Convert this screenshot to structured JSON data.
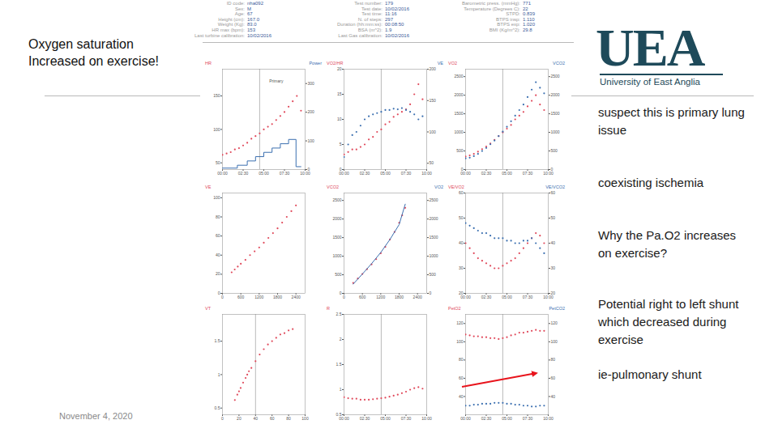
{
  "slide": {
    "left_title": [
      "Oxygen saturation",
      "Increased on exercise!"
    ],
    "notes": [
      "suspect this is primary lung issue",
      "coexisting ischemia",
      "Why the Pa.O2 increases on exercise?",
      "Potential right to left shunt which decreased during exercise",
      "ie-pulmonary shunt"
    ],
    "date": "November 4, 2020",
    "logo": {
      "letters": "UEA",
      "name": "University of East Anglia"
    },
    "header": [
      [
        [
          "ID code:",
          "nha092"
        ],
        [
          "Sex:",
          "M"
        ],
        [
          "Age:",
          "67"
        ],
        [
          "Height (cm):",
          "167.0"
        ],
        [
          "Weight (Kg):",
          "83.0"
        ],
        [
          "HR max (bpm):",
          "153"
        ],
        [
          "Last turbine calibration:",
          "10/02/2016"
        ]
      ],
      [
        [
          "Test number:",
          "179"
        ],
        [
          "Test date:",
          "10/02/2016"
        ],
        [
          "Test time:",
          "11:16"
        ],
        [
          "N. of steps:",
          "297"
        ],
        [
          "Duration (hh:mm:ss):",
          "00:08:50"
        ],
        [
          "BSA (m^2):",
          "1.9"
        ],
        [
          "Last Gas calibration:",
          "10/02/2016"
        ]
      ],
      [
        [
          "Barometric press. (mmHg):",
          "771"
        ],
        [
          "Temperature (Degrees C):",
          "22"
        ],
        [
          "STPD:",
          "0.839"
        ],
        [
          "BTPS insp:",
          "1.110"
        ],
        [
          "BTPS exp:",
          "1.020"
        ],
        [
          "BMI (Kg/m^2):",
          "29.8"
        ]
      ]
    ]
  },
  "chart_data": [
    {
      "type": "scatter",
      "xlim": [
        0,
        10
      ],
      "xticks": [
        {
          "value": 0,
          "label": "00:00"
        },
        {
          "value": 2.5,
          "label": "02:30"
        },
        {
          "value": 5,
          "label": "05:00"
        },
        {
          "value": 7.5,
          "label": "07:30"
        },
        {
          "value": 10,
          "label": "10:00"
        }
      ],
      "ylim": [
        40,
        190
      ],
      "yticks": [
        50,
        100,
        150
      ],
      "y2lim": [
        0,
        350
      ],
      "y2ticks": [
        0,
        100,
        200,
        300
      ],
      "vline": 4.5,
      "annotations": [
        {
          "text": "Primary",
          "x": 6.5,
          "y": 172
        }
      ],
      "series": [
        {
          "name": "HR",
          "color": "#e0485a",
          "x": [
            0,
            0.5,
            1,
            1.5,
            2,
            2.5,
            3,
            3.5,
            4,
            4.5,
            5,
            5.5,
            6,
            6.5,
            7,
            7.5,
            8,
            8.5,
            9,
            9.5
          ],
          "values": [
            62,
            64,
            66,
            70,
            72,
            76,
            80,
            86,
            90,
            94,
            100,
            104,
            108,
            114,
            120,
            126,
            134,
            142,
            150,
            128
          ]
        },
        {
          "name": "Power",
          "color": "#3b6fb0",
          "type": "line",
          "line_style": "step",
          "axis": "y2",
          "x": [
            0,
            1.8,
            3,
            4,
            5,
            6,
            7,
            8,
            8.9,
            9.5
          ],
          "values": [
            5,
            15,
            30,
            45,
            60,
            75,
            90,
            105,
            10,
            10
          ]
        }
      ]
    },
    {
      "type": "scatter",
      "xlim": [
        0,
        10
      ],
      "xticks": [
        {
          "value": 0,
          "label": "00:00"
        },
        {
          "value": 2.5,
          "label": "02:30"
        },
        {
          "value": 5,
          "label": "05:00"
        },
        {
          "value": 7.5,
          "label": "07:30"
        },
        {
          "value": 10,
          "label": "10:00"
        }
      ],
      "ylim": [
        0,
        20
      ],
      "yticks": [
        0,
        5,
        10,
        15,
        20
      ],
      "y2lim": [
        40,
        200
      ],
      "y2ticks": [
        50,
        100,
        150,
        200
      ],
      "vline": 4.5,
      "series": [
        {
          "name": "VO2/HR",
          "color": "#e0485a",
          "x": [
            0,
            0.5,
            1,
            1.5,
            2,
            2.5,
            3,
            3.5,
            4,
            4.5,
            5,
            5.5,
            6,
            6.5,
            7,
            7.5,
            8,
            8.5,
            9,
            9.5
          ],
          "values": [
            3,
            3.5,
            4,
            4,
            4.5,
            5,
            6,
            6.5,
            7.5,
            8,
            9,
            9.5,
            10.5,
            11,
            11.5,
            12,
            13,
            15,
            17,
            14
          ]
        },
        {
          "name": "VE",
          "color": "#3b6fb0",
          "axis": "y2",
          "x": [
            0,
            0.5,
            1,
            1.5,
            2,
            2.5,
            3,
            3.5,
            4,
            4.5,
            5,
            5.5,
            6,
            6.5,
            7,
            7.5,
            8,
            8.5,
            9,
            9.5
          ],
          "values": [
            60,
            80,
            95,
            100,
            110,
            120,
            125,
            128,
            130,
            132,
            135,
            135,
            137,
            136,
            138,
            135,
            132,
            128,
            120,
            125
          ]
        }
      ]
    },
    {
      "type": "scatter",
      "xlim": [
        0,
        10
      ],
      "xticks": [
        {
          "value": 0,
          "label": "00:00"
        },
        {
          "value": 2.5,
          "label": "02:30"
        },
        {
          "value": 5,
          "label": "05:00"
        },
        {
          "value": 7.5,
          "label": "07:30"
        },
        {
          "value": 10,
          "label": "10:00"
        }
      ],
      "ylim": [
        0,
        2700
      ],
      "yticks": [
        0,
        500,
        1000,
        1500,
        2000,
        2500
      ],
      "y2lim": [
        0,
        2700
      ],
      "y2ticks": [
        0,
        500,
        1000,
        1500,
        2000,
        2500
      ],
      "vline": 4.5,
      "series": [
        {
          "name": "VO2",
          "color": "#e0485a",
          "x": [
            0,
            0.5,
            1,
            1.5,
            2,
            2.5,
            3,
            3.5,
            4,
            4.5,
            5,
            5.5,
            6,
            6.5,
            7,
            7.5,
            8,
            8.5,
            9,
            9.5
          ],
          "values": [
            350,
            380,
            420,
            480,
            550,
            620,
            700,
            800,
            900,
            1000,
            1100,
            1200,
            1350,
            1450,
            1550,
            1700,
            1850,
            2000,
            1750,
            1600
          ]
        },
        {
          "name": "VCO2",
          "color": "#3b6fb0",
          "axis": "y2",
          "x": [
            0,
            0.5,
            1,
            1.5,
            2,
            2.5,
            3,
            3.5,
            4,
            4.5,
            5,
            5.5,
            6,
            6.5,
            7,
            7.5,
            8,
            8.5,
            9,
            9.5
          ],
          "values": [
            300,
            320,
            360,
            420,
            500,
            580,
            680,
            780,
            900,
            1020,
            1150,
            1300,
            1450,
            1600,
            1750,
            1950,
            2150,
            2350,
            2200,
            2050
          ]
        }
      ]
    },
    {
      "type": "scatter",
      "xlim": [
        0,
        2700
      ],
      "xticks": [
        0,
        600,
        1200,
        1800,
        2400
      ],
      "ylim": [
        0,
        105
      ],
      "yticks": [
        0,
        20,
        40,
        60,
        80,
        100
      ],
      "series": [
        {
          "name": "VE",
          "color": "#e0485a",
          "x": [
            300,
            400,
            500,
            600,
            750,
            900,
            1050,
            1200,
            1350,
            1500,
            1650,
            1800,
            1950,
            2100,
            2250,
            2400
          ],
          "values": [
            22,
            25,
            28,
            31,
            35,
            40,
            44,
            48,
            53,
            58,
            63,
            68,
            74,
            80,
            86,
            92
          ]
        }
      ]
    },
    {
      "type": "scatter",
      "xlim": [
        0,
        2700
      ],
      "xticks": [
        0,
        600,
        1200,
        1800,
        2400
      ],
      "ylim": [
        0,
        2700
      ],
      "yticks": [
        0,
        500,
        1000,
        1500,
        2000,
        2500
      ],
      "y2lim": [
        0,
        2700
      ],
      "y2ticks": [
        0,
        500,
        1000,
        1500,
        2000,
        2500
      ],
      "series": [
        {
          "name": "VCO2",
          "color": "#e0485a",
          "x": [
            300,
            450,
            600,
            750,
            900,
            1050,
            1200,
            1350,
            1500,
            1650,
            1800,
            1900,
            2000
          ],
          "values": [
            280,
            400,
            520,
            650,
            780,
            920,
            1080,
            1250,
            1450,
            1650,
            1900,
            2100,
            2300
          ]
        },
        {
          "name": "VO2",
          "color": "#3b6fb0",
          "type": "line",
          "axis": "y2",
          "x": [
            300,
            600,
            900,
            1200,
            1500,
            1800,
            2000
          ],
          "values": [
            250,
            520,
            800,
            1100,
            1450,
            1850,
            2400
          ]
        }
      ]
    },
    {
      "type": "scatter",
      "xlim": [
        0,
        10
      ],
      "xticks": [
        {
          "value": 0,
          "label": "00:00"
        },
        {
          "value": 2.5,
          "label": "02:30"
        },
        {
          "value": 5,
          "label": "05:00"
        },
        {
          "value": 7.5,
          "label": "07:30"
        },
        {
          "value": 10,
          "label": "10:00"
        }
      ],
      "ylim": [
        20,
        60
      ],
      "yticks": [
        20,
        30,
        40,
        50,
        60
      ],
      "y2lim": [
        20,
        60
      ],
      "y2ticks": [
        20,
        30,
        40,
        50,
        60
      ],
      "vline": 4.5,
      "series": [
        {
          "name": "VE/VO2",
          "color": "#e0485a",
          "x": [
            0,
            0.5,
            1,
            1.5,
            2,
            2.5,
            3,
            3.5,
            4,
            4.5,
            5,
            5.5,
            6,
            6.5,
            7,
            7.5,
            8,
            8.5,
            9,
            9.5
          ],
          "values": [
            40,
            38,
            36,
            34,
            33,
            32,
            31,
            30,
            30,
            31,
            32,
            33,
            34,
            36,
            38,
            40,
            42,
            44,
            43,
            40
          ]
        },
        {
          "name": "VE/VCO2",
          "color": "#3b6fb0",
          "axis": "y2",
          "x": [
            0,
            0.5,
            1,
            1.5,
            2,
            2.5,
            3,
            3.5,
            4,
            4.5,
            5,
            5.5,
            6,
            6.5,
            7,
            7.5,
            8,
            8.5,
            9,
            9.5
          ],
          "values": [
            48,
            47,
            46,
            45,
            44,
            44,
            43,
            42,
            42,
            42,
            41,
            41,
            40,
            40,
            41,
            41,
            42,
            40,
            38,
            36
          ]
        }
      ]
    },
    {
      "type": "scatter",
      "xlim": [
        0,
        100
      ],
      "xticks": [
        0,
        20,
        40,
        60,
        80,
        100
      ],
      "ylim": [
        0.4,
        1.9
      ],
      "yticks": [
        0.5,
        1,
        1.5
      ],
      "vline": 40,
      "series": [
        {
          "name": "VT",
          "color": "#e0485a",
          "x": [
            15,
            18,
            20,
            22,
            25,
            28,
            30,
            32,
            35,
            40,
            45,
            50,
            55,
            60,
            65,
            70,
            75,
            80,
            85
          ],
          "values": [
            0.62,
            0.7,
            0.75,
            0.8,
            0.88,
            0.95,
            1.0,
            1.05,
            1.1,
            1.2,
            1.3,
            1.38,
            1.45,
            1.5,
            1.55,
            1.6,
            1.62,
            1.66,
            1.68
          ]
        }
      ]
    },
    {
      "type": "scatter",
      "xlim": [
        0,
        10
      ],
      "xticks": [
        {
          "value": 0,
          "label": "00:00"
        },
        {
          "value": 2.5,
          "label": "02:30"
        },
        {
          "value": 5,
          "label": "05:00"
        },
        {
          "value": 7.5,
          "label": "07:30"
        },
        {
          "value": 10,
          "label": "10:00"
        }
      ],
      "ylim": [
        0.5,
        2.5
      ],
      "yticks": [
        0.5,
        1,
        1.5,
        2,
        2.5
      ],
      "vline": 4.5,
      "series": [
        {
          "name": "R",
          "color": "#e0485a",
          "x": [
            0,
            0.5,
            1,
            1.5,
            2,
            2.5,
            3,
            3.5,
            4,
            4.5,
            5,
            5.5,
            6,
            6.5,
            7,
            7.5,
            8,
            8.5,
            9,
            9.5
          ],
          "values": [
            0.85,
            0.83,
            0.82,
            0.82,
            0.8,
            0.8,
            0.8,
            0.81,
            0.82,
            0.83,
            0.84,
            0.86,
            0.88,
            0.9,
            0.93,
            0.96,
            1,
            1.03,
            1.05,
            1.02
          ]
        }
      ]
    },
    {
      "type": "scatter",
      "xlim": [
        0,
        10
      ],
      "xticks": [
        {
          "value": 0,
          "label": "00:00"
        },
        {
          "value": 2.5,
          "label": "02:30"
        },
        {
          "value": 5,
          "label": "05:00"
        },
        {
          "value": 7.5,
          "label": "07:30"
        },
        {
          "value": 10,
          "label": "10:00"
        }
      ],
      "ylim": [
        20,
        130
      ],
      "yticks": [
        40,
        60,
        80,
        100,
        120
      ],
      "y2lim": [
        20,
        130
      ],
      "y2ticks": [
        40,
        60,
        80,
        100,
        120
      ],
      "vline": 4.5,
      "series": [
        {
          "name": "PetO2",
          "color": "#e0485a",
          "x": [
            0,
            0.5,
            1,
            1.5,
            2,
            2.5,
            3,
            3.5,
            4,
            4.5,
            5,
            5.5,
            6,
            6.5,
            7,
            7.5,
            8,
            8.5,
            9,
            9.5
          ],
          "values": [
            108,
            107,
            106,
            106,
            105,
            105,
            104,
            104,
            103,
            104,
            105,
            107,
            108,
            110,
            110,
            111,
            112,
            113,
            112,
            112
          ]
        },
        {
          "name": "PetCO2",
          "color": "#3b6fb0",
          "axis": "y2",
          "x": [
            0,
            0.5,
            1,
            1.5,
            2,
            2.5,
            3,
            3.5,
            4,
            4.5,
            5,
            5.5,
            6,
            6.5,
            7,
            7.5,
            8,
            8.5,
            9,
            9.5
          ],
          "values": [
            30,
            30,
            31,
            31,
            32,
            32,
            32,
            33,
            33,
            33,
            32,
            32,
            31,
            31,
            30,
            30,
            29,
            29,
            30,
            30
          ]
        }
      ]
    }
  ]
}
